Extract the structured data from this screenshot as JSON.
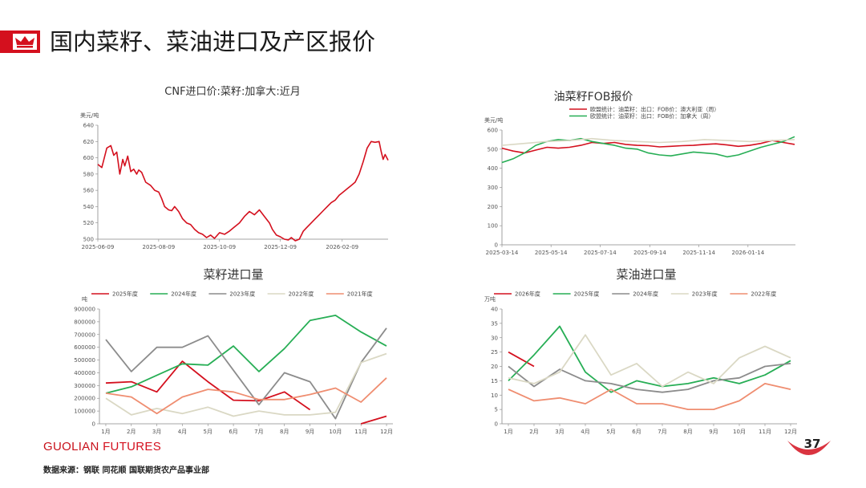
{
  "header": {
    "title": "国内菜籽、菜油进口及产区报价"
  },
  "footer": {
    "brand_1": "GUOLIAN",
    "brand_2": " FUTURES",
    "source": "数据来源：钢联 同花顺 国联期货农产品事业部",
    "page_number": "37"
  },
  "colors": {
    "accent": "#d4101e"
  },
  "chart_data": [
    {
      "id": "cnf",
      "type": "line",
      "title": "CNF进口价:菜籽:加拿大:近月",
      "ylabel": "美元/吨",
      "ylim": [
        500,
        640
      ],
      "yticks": [
        500,
        520,
        540,
        560,
        580,
        600,
        620,
        640
      ],
      "xlim": [
        "2025-06-09",
        "2026-03-27"
      ],
      "xticks": [
        "2025-06-09",
        "2025-08-09",
        "2025-10-09",
        "2025-12-09",
        "2026-02-09"
      ],
      "series": [
        {
          "name": "",
          "color": "#d4101e",
          "x": [
            "2025-06-09",
            "2025-06-13",
            "2025-06-18",
            "2025-06-22",
            "2025-06-25",
            "2025-06-28",
            "2025-07-01",
            "2025-07-04",
            "2025-07-06",
            "2025-07-09",
            "2025-07-12",
            "2025-07-15",
            "2025-07-18",
            "2025-07-20",
            "2025-07-23",
            "2025-07-27",
            "2025-08-01",
            "2025-08-05",
            "2025-08-09",
            "2025-08-12",
            "2025-08-15",
            "2025-08-19",
            "2025-08-22",
            "2025-08-25",
            "2025-08-29",
            "2025-09-02",
            "2025-09-06",
            "2025-09-10",
            "2025-09-14",
            "2025-09-18",
            "2025-09-22",
            "2025-09-26",
            "2025-09-30",
            "2025-10-04",
            "2025-10-09",
            "2025-10-14",
            "2025-10-19",
            "2025-10-24",
            "2025-10-29",
            "2025-11-03",
            "2025-11-08",
            "2025-11-13",
            "2025-11-18",
            "2025-11-23",
            "2025-11-28",
            "2025-12-01",
            "2025-12-05",
            "2025-12-09",
            "2025-12-13",
            "2025-12-17",
            "2025-12-20",
            "2025-12-24",
            "2025-12-28",
            "2026-01-01",
            "2026-01-05",
            "2026-01-09",
            "2026-01-13",
            "2026-01-17",
            "2026-01-21",
            "2026-01-25",
            "2026-01-29",
            "2026-02-02",
            "2026-02-06",
            "2026-02-10",
            "2026-02-14",
            "2026-02-18",
            "2026-02-22",
            "2026-02-26",
            "2026-03-02",
            "2026-03-06",
            "2026-03-10",
            "2026-03-14",
            "2026-03-18",
            "2026-03-20",
            "2026-03-22",
            "2026-03-24",
            "2026-03-27"
          ],
          "values": [
            592,
            588,
            612,
            615,
            603,
            607,
            580,
            598,
            590,
            602,
            583,
            586,
            580,
            585,
            582,
            570,
            566,
            560,
            558,
            550,
            540,
            536,
            535,
            540,
            534,
            525,
            520,
            518,
            512,
            508,
            506,
            502,
            505,
            501,
            508,
            506,
            510,
            515,
            520,
            528,
            534,
            530,
            536,
            528,
            520,
            512,
            505,
            503,
            500,
            499,
            502,
            498,
            500,
            510,
            515,
            520,
            525,
            530,
            535,
            540,
            545,
            548,
            554,
            558,
            562,
            566,
            570,
            580,
            595,
            612,
            620,
            619,
            620,
            608,
            598,
            604,
            597
          ]
        }
      ]
    },
    {
      "id": "fob",
      "type": "line",
      "title": "油菜籽FOB报价",
      "ylabel": "美元/吨",
      "ylim": [
        0,
        600
      ],
      "yticks": [
        0,
        100,
        200,
        300,
        400,
        500,
        600
      ],
      "xlim": [
        "2025-03-14",
        "2026-03-14"
      ],
      "xticks": [
        "2025-03-14",
        "2025-05-14",
        "2025-07-14",
        "2025-09-14",
        "2025-11-14",
        "2026-01-14"
      ],
      "legend": [
        "欧盟统计：油菜籽：出口：FOB价：澳大利亚（周）",
        "欧盟统计：油菜籽：出口：FOB价：加拿大（周）"
      ],
      "series": [
        {
          "name": "欧盟统计：油菜籽：出口：FOB价：澳大利亚（周）",
          "color": "#d4101e",
          "x": [
            "2025-03-14",
            "2025-03-28",
            "2025-04-11",
            "2025-04-25",
            "2025-05-09",
            "2025-05-23",
            "2025-06-06",
            "2025-06-20",
            "2025-07-04",
            "2025-07-18",
            "2025-08-01",
            "2025-08-15",
            "2025-08-29",
            "2025-09-12",
            "2025-09-26",
            "2025-10-10",
            "2025-10-24",
            "2025-11-07",
            "2025-11-21",
            "2025-12-05",
            "2025-12-19",
            "2026-01-02",
            "2026-01-16",
            "2026-01-30",
            "2026-02-13",
            "2026-02-27",
            "2026-03-13"
          ],
          "values": [
            505,
            490,
            480,
            495,
            510,
            505,
            510,
            520,
            535,
            530,
            535,
            525,
            520,
            518,
            512,
            515,
            518,
            520,
            525,
            528,
            522,
            515,
            520,
            530,
            545,
            535,
            525
          ]
        },
        {
          "name": "欧盟统计：油菜籽：出口：FOB价：加拿大（周）",
          "color": "#27ae55",
          "x": [
            "2025-03-14",
            "2025-03-28",
            "2025-04-11",
            "2025-04-25",
            "2025-05-09",
            "2025-05-23",
            "2025-06-06",
            "2025-06-20",
            "2025-07-04",
            "2025-07-18",
            "2025-08-01",
            "2025-08-15",
            "2025-08-29",
            "2025-09-12",
            "2025-09-26",
            "2025-10-10",
            "2025-10-24",
            "2025-11-07",
            "2025-11-21",
            "2025-12-05",
            "2025-12-19",
            "2026-01-02",
            "2026-01-16",
            "2026-01-30",
            "2026-02-13",
            "2026-02-27",
            "2026-03-13"
          ],
          "values": [
            430,
            450,
            480,
            520,
            540,
            550,
            545,
            555,
            540,
            530,
            520,
            505,
            500,
            480,
            470,
            465,
            475,
            485,
            480,
            475,
            460,
            470,
            490,
            510,
            525,
            540,
            565
          ]
        },
        {
          "name": "",
          "color": "#dad8c4",
          "x": [
            "2025-03-14",
            "2025-04-11",
            "2025-05-09",
            "2025-06-06",
            "2025-07-04",
            "2025-08-01",
            "2025-08-29",
            "2025-09-26",
            "2025-10-24",
            "2025-11-21",
            "2025-12-19",
            "2026-01-16",
            "2026-02-13",
            "2026-03-13"
          ],
          "values": [
            520,
            530,
            540,
            545,
            555,
            545,
            540,
            535,
            540,
            550,
            545,
            540,
            545,
            550
          ]
        }
      ]
    },
    {
      "id": "rapeseed_import",
      "type": "line",
      "title": "菜籽进口量",
      "ylabel": "吨",
      "ylim": [
        0,
        900000
      ],
      "yticks": [
        0,
        100000,
        200000,
        300000,
        400000,
        500000,
        600000,
        700000,
        800000,
        900000
      ],
      "categories": [
        "1月",
        "2月",
        "3月",
        "4月",
        "5月",
        "6月",
        "7月",
        "8月",
        "9月",
        "10月",
        "11月",
        "12月"
      ],
      "series": [
        {
          "name": "2025年度",
          "color": "#d4101e",
          "values": [
            320000,
            330000,
            250000,
            490000,
            330000,
            185000,
            180000,
            250000,
            110000,
            null,
            0,
            60000
          ]
        },
        {
          "name": "2024年度",
          "color": "#27ae55",
          "values": [
            240000,
            290000,
            380000,
            470000,
            460000,
            610000,
            410000,
            590000,
            810000,
            850000,
            720000,
            610000
          ]
        },
        {
          "name": "2023年度",
          "color": "#8c8c8c",
          "values": [
            660000,
            410000,
            600000,
            600000,
            690000,
            420000,
            150000,
            400000,
            330000,
            40000,
            480000,
            750000
          ]
        },
        {
          "name": "2022年度",
          "color": "#dad8c4",
          "values": [
            200000,
            70000,
            120000,
            80000,
            130000,
            60000,
            100000,
            70000,
            70000,
            90000,
            480000,
            550000
          ]
        },
        {
          "name": "2021年度",
          "color": "#ef8d70",
          "values": [
            240000,
            210000,
            80000,
            210000,
            270000,
            250000,
            190000,
            190000,
            230000,
            280000,
            170000,
            360000
          ]
        }
      ]
    },
    {
      "id": "rapeoil_import",
      "type": "line",
      "title": "菜油进口量",
      "ylabel": "万吨",
      "ylim": [
        0,
        40
      ],
      "yticks": [
        0,
        5,
        10,
        15,
        20,
        25,
        30,
        35,
        40
      ],
      "categories": [
        "1月",
        "2月",
        "3月",
        "4月",
        "5月",
        "6月",
        "7月",
        "8月",
        "9月",
        "10月",
        "11月",
        "12月"
      ],
      "series": [
        {
          "name": "2026年度",
          "color": "#d4101e",
          "values": [
            25,
            20,
            null,
            null,
            null,
            null,
            null,
            null,
            null,
            null,
            null,
            null
          ]
        },
        {
          "name": "2025年度",
          "color": "#27ae55",
          "values": [
            15,
            24,
            34,
            18,
            11,
            15,
            13,
            14,
            16,
            14,
            17,
            22
          ]
        },
        {
          "name": "2024年度",
          "color": "#8c8c8c",
          "values": [
            20,
            13,
            19,
            15,
            14,
            12,
            11,
            12,
            15,
            16,
            20,
            21
          ]
        },
        {
          "name": "2023年度",
          "color": "#dad8c4",
          "values": [
            16,
            14,
            18,
            31,
            17,
            21,
            13,
            18,
            14,
            23,
            27,
            23
          ]
        },
        {
          "name": "2022年度",
          "color": "#ef8d70",
          "values": [
            12,
            8,
            9,
            7,
            12,
            7,
            7,
            5,
            5,
            8,
            14,
            12
          ]
        }
      ]
    }
  ]
}
